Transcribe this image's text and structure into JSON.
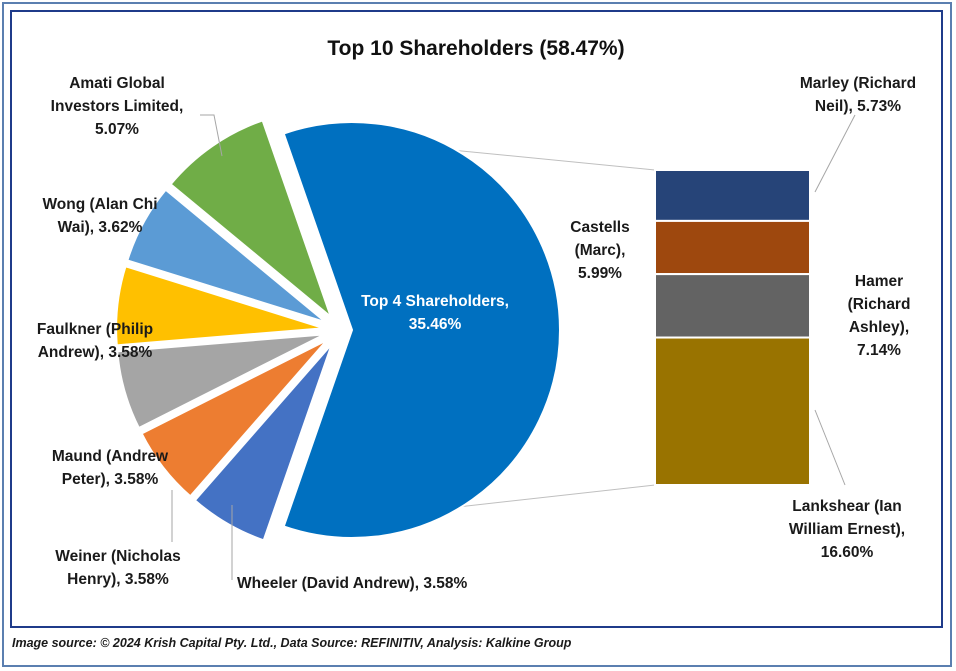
{
  "chart_data": {
    "type": "bar-of-pie",
    "title": "Top 10 Shareholders (58.47%)",
    "pie": [
      {
        "name": "Top 4 Shareholders",
        "value": 35.46,
        "color": "#0070c0"
      },
      {
        "name": "Wheeler (David Andrew)",
        "value": 3.58,
        "color": "#4472c4"
      },
      {
        "name": "Weiner (Nicholas Henry)",
        "value": 3.58,
        "color": "#ed7d31"
      },
      {
        "name": "Maund (Andrew Peter)",
        "value": 3.58,
        "color": "#a5a5a5"
      },
      {
        "name": "Faulkner (Philip Andrew)",
        "value": 3.58,
        "color": "#ffc000"
      },
      {
        "name": "Wong (Alan Chi Wai)",
        "value": 3.62,
        "color": "#5b9bd5"
      },
      {
        "name": "Amati Global Investors Limited",
        "value": 5.07,
        "color": "#70ad47"
      }
    ],
    "bar": [
      {
        "name": "Marley (Richard Neil)",
        "value": 5.73,
        "color": "#264478"
      },
      {
        "name": "Castells (Marc)",
        "value": 5.99,
        "color": "#9e480e"
      },
      {
        "name": "Hamer (Richard Ashley)",
        "value": 7.14,
        "color": "#636363"
      },
      {
        "name": "Lankshear (Ian William Ernest)",
        "value": 16.6,
        "color": "#997300"
      }
    ],
    "labels": {
      "top4": [
        "Top 4 Shareholders,",
        "35.46%"
      ],
      "wheeler": [
        "Wheeler (David Andrew), 3.58%"
      ],
      "weiner": [
        "Weiner (Nicholas",
        "Henry), 3.58%"
      ],
      "maund": [
        "Maund (Andrew",
        "Peter), 3.58%"
      ],
      "faulkner": [
        "Faulkner (Philip",
        "Andrew), 3.58%"
      ],
      "wong": [
        "Wong (Alan Chi",
        "Wai), 3.62%"
      ],
      "amati": [
        "Amati Global",
        "Investors Limited,",
        "5.07%"
      ],
      "marley": [
        "Marley (Richard",
        "Neil), 5.73%"
      ],
      "castells": [
        "Castells",
        "(Marc),",
        "5.99%"
      ],
      "hamer": [
        "Hamer",
        "(Richard",
        "Ashley),",
        "7.14%"
      ],
      "lankshear": [
        "Lankshear (Ian",
        "William Ernest),",
        "16.60%"
      ]
    }
  },
  "footer": {
    "source": "Image source: © 2024 Krish Capital Pty. Ltd., Data Source: REFINITIV, Analysis: Kalkine Group"
  }
}
